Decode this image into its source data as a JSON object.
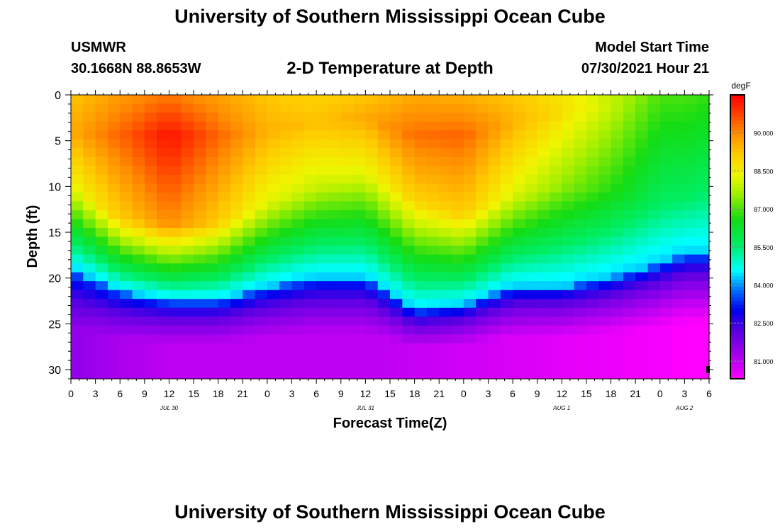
{
  "header": {
    "title": "University of Southern Mississippi Ocean Cube",
    "station": "USMWR",
    "coordinates": "30.1668N  88.8653W",
    "subtitle": "2-D Temperature at Depth",
    "start_label": "Model Start Time",
    "start_value": "07/30/2021 Hour 21"
  },
  "footer": {
    "title": "University of Southern Mississippi Ocean Cube"
  },
  "chart_data": {
    "type": "heatmap",
    "title": "2-D Temperature at Depth",
    "xlabel": "Forecast Time(Z)",
    "ylabel": "Depth (ft)",
    "xlim": [
      0,
      78
    ],
    "ylim": [
      0,
      31
    ],
    "x_ticks": [
      0,
      3,
      6,
      9,
      12,
      15,
      18,
      21,
      24,
      27,
      30,
      33,
      36,
      39,
      42,
      45,
      48,
      51,
      54,
      57,
      60,
      63,
      66,
      69,
      72,
      75,
      78
    ],
    "x_tick_labels": [
      "0",
      "3",
      "6",
      "9",
      "12",
      "15",
      "18",
      "21",
      "0",
      "3",
      "6",
      "9",
      "12",
      "15",
      "18",
      "21",
      "0",
      "3",
      "6",
      "9",
      "12",
      "15",
      "18",
      "21",
      "0",
      "3",
      "6"
    ],
    "date_labels": [
      {
        "label": "JUL 30",
        "x": 12
      },
      {
        "label": "JUL 31",
        "x": 36
      },
      {
        "label": "AUG 1",
        "x": 60
      },
      {
        "label": "AUG 2",
        "x": 75
      }
    ],
    "y_ticks": [
      0,
      5,
      10,
      15,
      20,
      25,
      30
    ],
    "colorbar": {
      "unit": "degF",
      "range": [
        80.3,
        91.5
      ],
      "ticks": [
        81.0,
        82.5,
        84.0,
        85.5,
        87.0,
        88.5,
        90.0
      ],
      "tick_labels": [
        "81.000",
        "82.500",
        "84.000",
        "85.500",
        "87.000",
        "88.500",
        "90.000"
      ]
    },
    "profiles": {
      "hours": [
        0,
        6,
        12,
        18,
        24,
        30,
        36,
        42,
        48,
        54,
        60,
        66,
        72,
        75,
        78
      ],
      "surface_temp": [
        89.2,
        89.8,
        90.2,
        89.7,
        89.2,
        89.0,
        89.2,
        89.6,
        89.5,
        89.2,
        88.7,
        87.9,
        87.0,
        87.0,
        86.8
      ],
      "peak_temp": [
        89.6,
        90.4,
        91.3,
        90.4,
        89.5,
        89.3,
        89.6,
        90.3,
        90.4,
        89.5,
        88.8,
        88.0,
        87.0,
        87.0,
        86.8
      ],
      "peak_depth": [
        4,
        4.5,
        4.5,
        4.5,
        4,
        3,
        2.5,
        4.5,
        4.5,
        3,
        2,
        1,
        0,
        0,
        0
      ],
      "mixed_layer_depth": [
        10,
        13.5,
        14,
        14,
        12,
        10,
        8.5,
        11.5,
        13,
        11,
        10,
        10.5,
        11.5,
        11,
        11
      ],
      "thermocline_depth": [
        19,
        21.5,
        22.5,
        22.5,
        21,
        20,
        20,
        23.5,
        23,
        21,
        21,
        20,
        18.5,
        17.5,
        17.5
      ],
      "bottom_temp": [
        81.5,
        81.2,
        81.0,
        81.0,
        81.0,
        81.0,
        81.0,
        80.9,
        80.8,
        80.7,
        80.6,
        80.5,
        80.4,
        80.3,
        80.3
      ]
    },
    "grid_columns": 52,
    "grid_rows": 32
  }
}
